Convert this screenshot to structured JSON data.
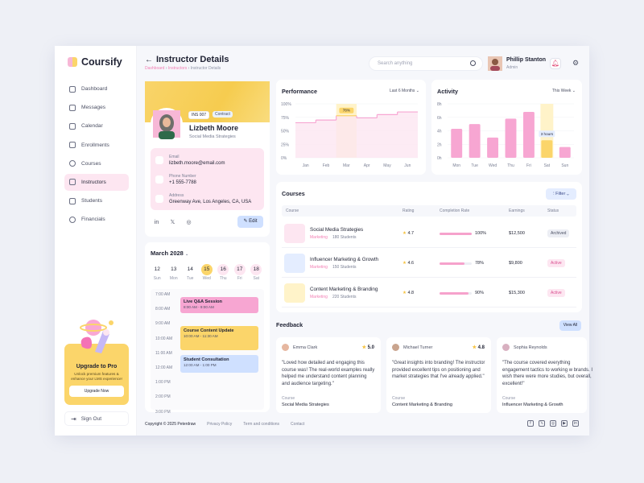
{
  "app": {
    "name": "Coursify"
  },
  "sidebar": {
    "items": [
      {
        "label": "Dashboard",
        "active": false
      },
      {
        "label": "Messages",
        "active": false
      },
      {
        "label": "Calendar",
        "active": false
      },
      {
        "label": "Enrollments",
        "active": false
      },
      {
        "label": "Courses",
        "active": false
      },
      {
        "label": "Instructors",
        "active": true
      },
      {
        "label": "Students",
        "active": false
      },
      {
        "label": "Financials",
        "active": false
      }
    ],
    "upgrade": {
      "title": "Upgrade to Pro",
      "desc": "Unlock premium features & enhance your LMS experience!",
      "button": "Upgrade Now"
    },
    "signout": "Sign Out"
  },
  "header": {
    "title": "Instructor Details",
    "breadcrumb": [
      "Dashboard",
      "Instructors",
      "Instructor Details"
    ],
    "search_placeholder": "Search anything",
    "user": {
      "name": "Phillip Stanton",
      "role": "Admin"
    }
  },
  "profile": {
    "id": "INS 007",
    "type": "Contract",
    "name": "Lizbeth Moore",
    "role": "Social Media Strategies",
    "email_label": "Email",
    "email": "lizbeth.moore@email.com",
    "phone_label": "Phone Number",
    "phone": "+1 555-7788",
    "address_label": "Address",
    "address": "Greenway Ave, Los Angeles, CA, USA",
    "edit": "Edit"
  },
  "calendar": {
    "month": "March 2028",
    "days": [
      {
        "num": "12",
        "name": "Sun",
        "state": "plain"
      },
      {
        "num": "13",
        "name": "Mon",
        "state": "plain"
      },
      {
        "num": "14",
        "name": "Tue",
        "state": "plain"
      },
      {
        "num": "15",
        "name": "Wed",
        "state": "today"
      },
      {
        "num": "16",
        "name": "Thu",
        "state": "other"
      },
      {
        "num": "17",
        "name": "Fri",
        "state": "other"
      },
      {
        "num": "18",
        "name": "Sat",
        "state": "other"
      }
    ],
    "times": [
      "7:00 AM",
      "8:00 AM",
      "9:00 AM",
      "10:00 AM",
      "11:00 AM",
      "12:00 AM",
      "1:00 PM",
      "2:00 PM",
      "3:00 PM"
    ],
    "events": [
      {
        "title": "Live Q&A Session",
        "time": "8:00 AM - 9:00 AM",
        "color": "#f7a6d2"
      },
      {
        "title": "Course Content Update",
        "time": "10:00 AM - 11:30 AM",
        "color": "#fbd56a"
      },
      {
        "title": "Student Consultation",
        "time": "12:00 AM - 1:00 PM",
        "color": "#cfe0ff"
      }
    ]
  },
  "performance": {
    "title": "Performance",
    "range": "Last 6 Months",
    "callout": "78%"
  },
  "activity": {
    "title": "Activity",
    "range": "This Week",
    "callout": "3 hours"
  },
  "chart_data": [
    {
      "type": "area",
      "title": "Performance",
      "categories": [
        "Jan",
        "Feb",
        "Mar",
        "Apr",
        "May",
        "Jun"
      ],
      "values": [
        65,
        70,
        78,
        74,
        80,
        85
      ],
      "ylim": [
        0,
        100
      ],
      "yticks": [
        "0%",
        "25%",
        "50%",
        "75%",
        "100%"
      ],
      "highlight": "Mar",
      "color": "#f7a6d2"
    },
    {
      "type": "bar",
      "title": "Activity",
      "categories": [
        "Mon",
        "Tue",
        "Wed",
        "Thu",
        "Fri",
        "Sat",
        "Sun"
      ],
      "values": [
        4.3,
        5.0,
        3.0,
        5.8,
        6.8,
        2.6,
        1.6
      ],
      "ylim": [
        0,
        8
      ],
      "yticks": [
        "0h",
        "2h",
        "4h",
        "6h",
        "8h"
      ],
      "highlight": "Sat",
      "color": "#f7a6d2",
      "highlight_color": "#fbd56a"
    }
  ],
  "courses": {
    "title": "Courses",
    "filter": "Filter",
    "columns": [
      "Course",
      "Rating",
      "Completion Rate",
      "Earnings",
      "Status"
    ],
    "rows": [
      {
        "name": "Social Media Strategies",
        "cat": "Marketing",
        "students": "180 Students",
        "rating": "4.7",
        "completion": 100,
        "pct": "100%",
        "earnings": "$12,500",
        "status": "Archived"
      },
      {
        "name": "Influencer Marketing & Growth",
        "cat": "Marketing",
        "students": "150 Students",
        "rating": "4.6",
        "completion": 78,
        "pct": "78%",
        "earnings": "$9,800",
        "status": "Active"
      },
      {
        "name": "Content Marketing & Branding",
        "cat": "Marketing",
        "students": "220 Students",
        "rating": "4.8",
        "completion": 90,
        "pct": "90%",
        "earnings": "$15,300",
        "status": "Active"
      }
    ]
  },
  "feedback": {
    "title": "Feedback",
    "view_all": "View All",
    "course_label": "Course",
    "items": [
      {
        "name": "Emma Clark",
        "rating": "5.0",
        "text": "\"Loved how detailed and engaging this course was! The real-world examples really helped me understand content planning and audience targeting.\"",
        "course": "Social Media Strategies"
      },
      {
        "name": "Michael Turner",
        "rating": "4.8",
        "text": "\"Great insights into branding! The instructor provided excellent tips on positioning and market strategies that I've already applied.\"",
        "course": "Content Marketing & Branding"
      },
      {
        "name": "Sophia Reynolds",
        "rating": "",
        "text": "\"The course covered everything engagement tactics to working w brands. I wish there were more studies, but overall, excellent!\"",
        "course": "Influencer Marketing & Growth"
      }
    ]
  },
  "footer": {
    "copyright": "Copyright © 2025 Peterdraw",
    "privacy": "Privacy Policy",
    "terms": "Term and conditions",
    "contact": "Contact"
  }
}
